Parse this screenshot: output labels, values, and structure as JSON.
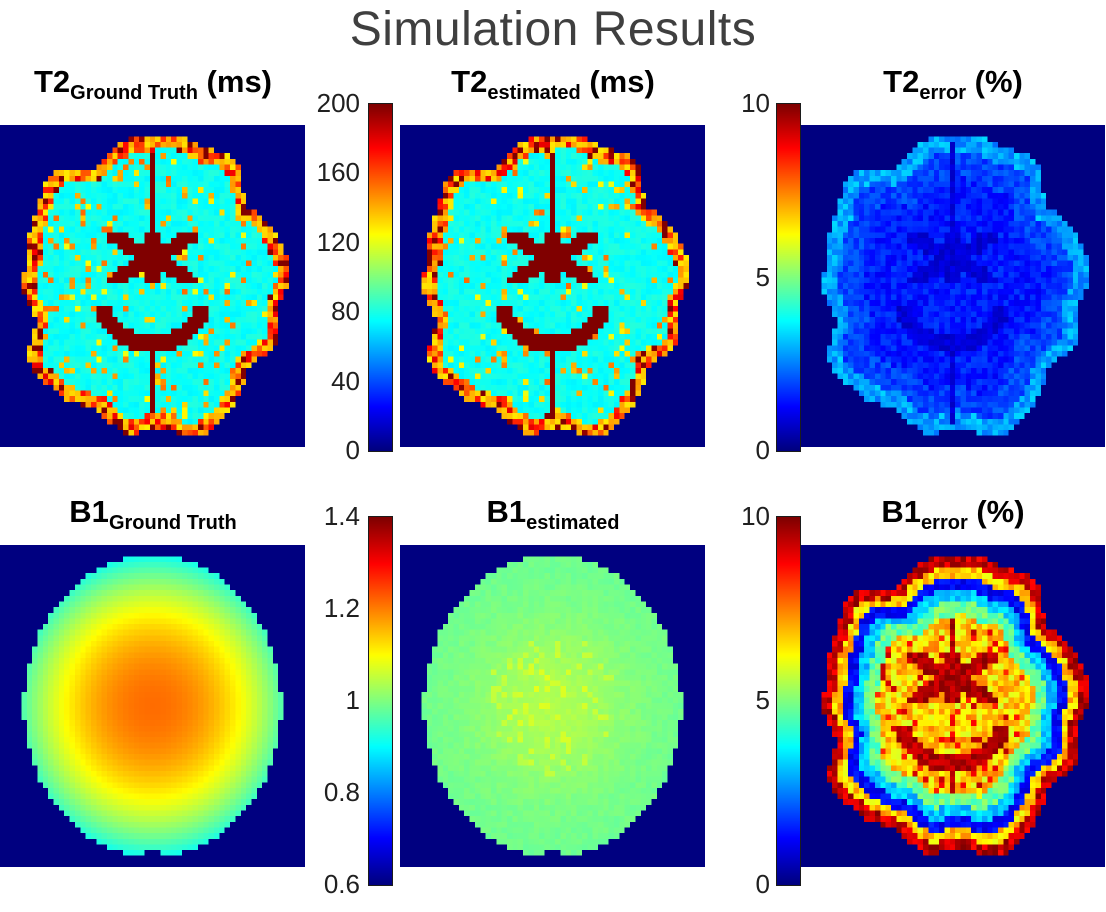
{
  "figure": {
    "title": "Simulation Results",
    "background": "#ffffff"
  },
  "colors": {
    "title_text": "#3f3f3f",
    "panel_title_text": "#000000",
    "tick_text": "#202020",
    "map_background": "#000080",
    "colormap": "jet"
  },
  "panels": [
    {
      "id": "t2_gt",
      "label_base": "T2",
      "label_sub": "Ground Truth",
      "label_unit": " (ms)",
      "render": "t2_map",
      "vmin": 0,
      "vmax": 200,
      "seed": 7
    },
    {
      "id": "t2_est",
      "label_base": "T2",
      "label_sub": "estimated",
      "label_unit": " (ms)",
      "render": "t2_map",
      "vmin": 0,
      "vmax": 200,
      "seed": 13
    },
    {
      "id": "t2_err",
      "label_base": "T2",
      "label_sub": "error",
      "label_unit": " (%)",
      "render": "t2_error",
      "vmin": 0,
      "vmax": 10,
      "seed": 5
    },
    {
      "id": "b1_gt",
      "label_base": "B1",
      "label_sub": "Ground Truth",
      "label_unit": "",
      "render": "b1_gt",
      "vmin": 0.6,
      "vmax": 1.4,
      "seed": 3
    },
    {
      "id": "b1_est",
      "label_base": "B1",
      "label_sub": "estimated",
      "label_unit": "",
      "render": "b1_est",
      "vmin": 0.6,
      "vmax": 1.4,
      "seed": 9
    },
    {
      "id": "b1_err",
      "label_base": "B1",
      "label_sub": "error",
      "label_unit": " (%)",
      "render": "b1_error",
      "vmin": 0,
      "vmax": 10,
      "seed": 11
    }
  ],
  "colorbars": [
    {
      "id": "cb_t2",
      "ticks": [
        "200",
        "160",
        "120",
        "80",
        "40",
        "0"
      ]
    },
    {
      "id": "cb_t2err",
      "ticks": [
        "10",
        "5",
        "0"
      ]
    },
    {
      "id": "cb_b1",
      "ticks": [
        "1.4",
        "1.2",
        "1",
        "0.8",
        "0.6"
      ]
    },
    {
      "id": "cb_b1err",
      "ticks": [
        "10",
        "5",
        "0"
      ]
    }
  ],
  "chart_data": [
    {
      "type": "heatmap",
      "title": "T2_Ground Truth (ms)",
      "colormap": "jet",
      "value_range": [
        0,
        200
      ],
      "colorbar_ticks": [
        0,
        40,
        80,
        120,
        160,
        200
      ],
      "legend_position": "left colorbar shared with estimated map",
      "description": "Axial brain T2 relaxation map; background 0 ms (dark blue), brain parenchyma ~70-85 ms (cyan), scattered voxels ~120-155 ms (yellow/orange), skull/scalp rim ~130-235 ms, CSF in ventricles and fissures >=200 ms (dark red, clipped)"
    },
    {
      "type": "heatmap",
      "title": "T2_estimated (ms)",
      "colormap": "jet",
      "value_range": [
        0,
        200
      ],
      "colorbar_ticks": [
        0,
        40,
        80,
        120,
        160,
        200
      ],
      "description": "Estimated T2 map, visually nearly identical to the ground truth map"
    },
    {
      "type": "heatmap",
      "title": "T2_error (%)",
      "colormap": "jet",
      "value_range": [
        0,
        10
      ],
      "colorbar_ticks": [
        0,
        5,
        10
      ],
      "description": "Relative T2 estimation error; ~1-2% over most of the brain (blue), ~2-3.5% lighter-blue ring near the cortical edge, background 0%"
    },
    {
      "type": "heatmap",
      "title": "B1_Ground Truth",
      "colormap": "jet",
      "value_range": [
        0.6,
        1.4
      ],
      "colorbar_ticks": [
        0.6,
        0.8,
        1.0,
        1.2,
        1.4
      ],
      "description": "Smooth radially symmetric B1+ field; ~1.2 at center (orange) decreasing to ~0.9 at the brain edge (cyan); background at scale minimum (dark blue)"
    },
    {
      "type": "heatmap",
      "title": "B1_estimated",
      "colormap": "jet",
      "value_range": [
        0.6,
        1.4
      ],
      "colorbar_ticks": [
        0.6,
        0.8,
        1.0,
        1.2,
        1.4
      ],
      "description": "Estimated B1 map, nearly flat ~0.98-1.05 (green-cyan) with a slightly elevated, speckled center (~1.05, yellow-green)"
    },
    {
      "type": "heatmap",
      "title": "B1_error (%)",
      "colormap": "jet",
      "value_range": [
        0,
        10
      ],
      "colorbar_ticks": [
        0,
        5,
        10
      ],
      "description": "Relative B1 estimation error; ~9-10% outer rim (dark red), ~6-7% orange band, ~1% dark-blue ring, ~3% cyan ring, ~4-5% green band, interior ~6-8% (orange) with ~9-10% red around ventricle-shaped structures"
    }
  ]
}
